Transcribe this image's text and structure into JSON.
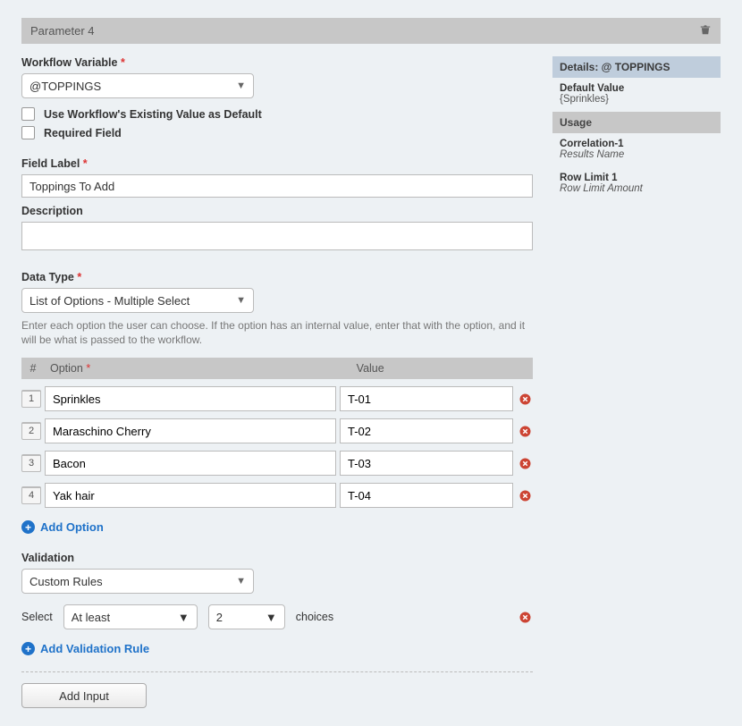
{
  "header": {
    "title": "Parameter 4"
  },
  "labels": {
    "workflow_var": "Workflow Variable",
    "use_existing": "Use Workflow's Existing Value as Default",
    "required_field": "Required Field",
    "field_label": "Field Label",
    "description": "Description",
    "data_type": "Data Type",
    "validation": "Validation",
    "select": "Select",
    "choices": "choices",
    "add_option": "Add Option",
    "add_validation_rule": "Add Validation Rule",
    "add_input": "Add Input"
  },
  "fields": {
    "workflow_var_value": "@TOPPINGS",
    "field_label_value": "Toppings To Add",
    "description_value": "",
    "data_type_value": "List of Options - Multiple Select",
    "data_type_help": "Enter each option the user can choose. If the option has an internal value, enter that with the option, and it will be what is passed to the workflow.",
    "validation_value": "Custom Rules",
    "validation_operator": "At least",
    "validation_count": "2"
  },
  "options_header": {
    "num": "#",
    "option": "Option",
    "value": "Value"
  },
  "options": [
    {
      "num": "1",
      "label": "Sprinkles",
      "value": "T-01"
    },
    {
      "num": "2",
      "label": "Maraschino Cherry",
      "value": "T-02"
    },
    {
      "num": "3",
      "label": "Bacon",
      "value": "T-03"
    },
    {
      "num": "4",
      "label": "Yak hair",
      "value": "T-04"
    }
  ],
  "details": {
    "header": "Details: @ TOPPINGS",
    "default_value_label": "Default Value",
    "default_value": "{Sprinkles}",
    "usage_header": "Usage",
    "usage": [
      {
        "title": "Correlation-1",
        "sub": "Results Name"
      },
      {
        "title": "Row Limit 1",
        "sub": "Row Limit Amount"
      }
    ]
  }
}
